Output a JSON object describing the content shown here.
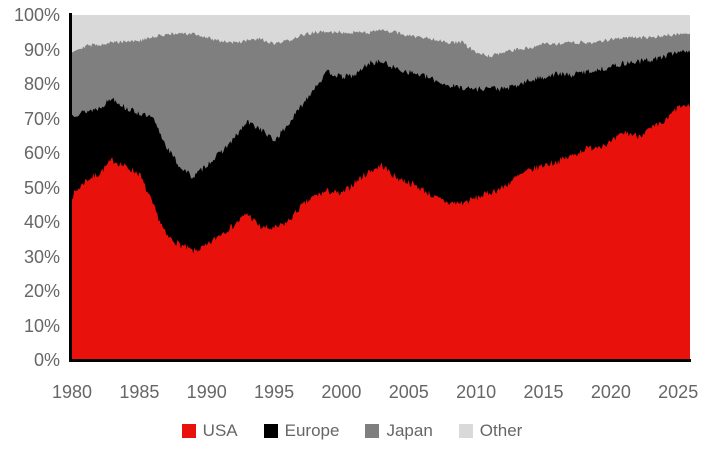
{
  "chart_data": {
    "type": "area",
    "stacked": true,
    "units": "percent_share",
    "title": "",
    "xlabel": "",
    "ylabel": "",
    "ylim": [
      0,
      100
    ],
    "grid": false,
    "legend_position": "bottom",
    "x": [
      1980,
      1981,
      1982,
      1983,
      1984,
      1985,
      1986,
      1987,
      1988,
      1989,
      1990,
      1991,
      1992,
      1993,
      1994,
      1995,
      1996,
      1997,
      1998,
      1999,
      2000,
      2001,
      2002,
      2003,
      2004,
      2005,
      2006,
      2007,
      2008,
      2009,
      2010,
      2011,
      2012,
      2013,
      2014,
      2015,
      2016,
      2017,
      2018,
      2019,
      2020,
      2021,
      2022,
      2023,
      2024,
      2025
    ],
    "y_ticks": [
      "0%",
      "10%",
      "20%",
      "30%",
      "40%",
      "50%",
      "60%",
      "70%",
      "80%",
      "90%",
      "100%"
    ],
    "x_ticks": [
      "1980",
      "1985",
      "1990",
      "1995",
      "2000",
      "2005",
      "2010",
      "2015",
      "2020",
      "2025"
    ],
    "series": [
      {
        "name": "USA",
        "color": "#e8110c",
        "values": [
          47.5,
          52,
          54,
          58,
          56,
          54,
          45,
          36,
          33.5,
          31.5,
          33,
          36.5,
          39,
          42.5,
          38.5,
          38,
          40,
          44.5,
          47.5,
          49,
          48,
          51.5,
          54.5,
          56.5,
          53,
          51.5,
          49.5,
          47,
          45.5,
          45.5,
          47,
          48.5,
          50,
          53,
          55,
          56.5,
          57.5,
          59,
          61,
          62,
          63,
          66,
          65,
          67,
          69,
          73.5
        ]
      },
      {
        "name": "Europe",
        "color": "#000000",
        "values": [
          23.5,
          20,
          19,
          18,
          17,
          17.5,
          25,
          26,
          22.5,
          21.5,
          23.5,
          23.5,
          25,
          26.5,
          28.5,
          25.5,
          28,
          29,
          31.5,
          34.5,
          34,
          31,
          31.5,
          30,
          31.5,
          32,
          33,
          34,
          34,
          33.5,
          31.5,
          30.5,
          28.5,
          26.5,
          26,
          25.5,
          25.5,
          23.5,
          22.5,
          22,
          22,
          20,
          21.5,
          20,
          19,
          16
        ]
      },
      {
        "name": "Japan",
        "color": "#7f7f7f",
        "values": [
          18.5,
          19,
          18.5,
          16,
          19.5,
          21,
          23.5,
          32.5,
          38.5,
          41.5,
          37,
          32.5,
          28,
          23.5,
          26,
          28,
          24.5,
          20.5,
          16,
          11.5,
          13,
          12.5,
          9,
          9,
          10.5,
          10.5,
          11,
          12,
          12.5,
          13,
          10.5,
          9,
          10.5,
          10.5,
          9.5,
          10,
          8.5,
          9.5,
          8.5,
          8,
          8,
          7.5,
          7,
          6.5,
          6,
          5
        ]
      },
      {
        "name": "Other",
        "color": "#d9d9d9",
        "values": [
          10.5,
          9,
          8.5,
          8,
          7.5,
          7.5,
          6.5,
          5.5,
          5.5,
          5.5,
          6.5,
          7.5,
          8,
          7.5,
          7,
          8.5,
          7.5,
          6,
          5,
          5,
          5,
          5,
          5,
          4.5,
          5,
          6,
          6.5,
          7,
          8,
          8,
          11,
          12,
          11,
          10,
          9.5,
          8,
          8.5,
          8,
          8,
          8,
          7,
          6.5,
          6.5,
          6.5,
          6,
          5.5
        ]
      }
    ]
  },
  "style": {
    "axis_text_color": "#666666",
    "spine_color": "#000000",
    "background": "#ffffff"
  }
}
